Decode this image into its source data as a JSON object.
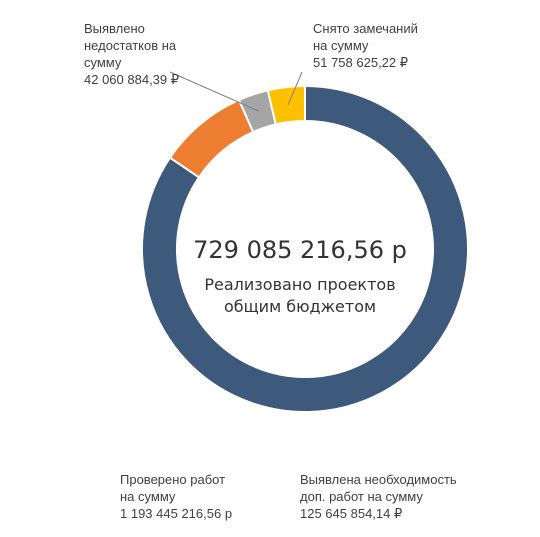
{
  "chart_data": {
    "type": "pie",
    "style": "donut",
    "center": {
      "value": "729 085 216,56 р",
      "caption_lines": [
        "Реализовано проектов",
        "общим бюджетом"
      ]
    },
    "slices": [
      {
        "key": "checked",
        "value": 1193445216.56,
        "color": "#3d5a7c",
        "label_lines": [
          "Проверено работ",
          "на сумму",
          "1 193 445 216,56 р"
        ]
      },
      {
        "key": "additional",
        "value": 125645854.14,
        "color": "#ed7d31",
        "label_lines": [
          "Выявлена необходимость",
          "доп. работ на сумму",
          "125 645 854,14 ₽"
        ]
      },
      {
        "key": "defects",
        "value": 42060884.39,
        "color": "#a5a5a5",
        "label_lines": [
          "Выявлено",
          "недостатков на",
          "сумму",
          "42 060 884,39 ₽"
        ]
      },
      {
        "key": "removed",
        "value": 51758625.22,
        "color": "#ffc000",
        "label_lines": [
          "Снято замечаний",
          "на сумму",
          "51 758 625,22 ₽"
        ]
      }
    ],
    "legend": "none"
  }
}
